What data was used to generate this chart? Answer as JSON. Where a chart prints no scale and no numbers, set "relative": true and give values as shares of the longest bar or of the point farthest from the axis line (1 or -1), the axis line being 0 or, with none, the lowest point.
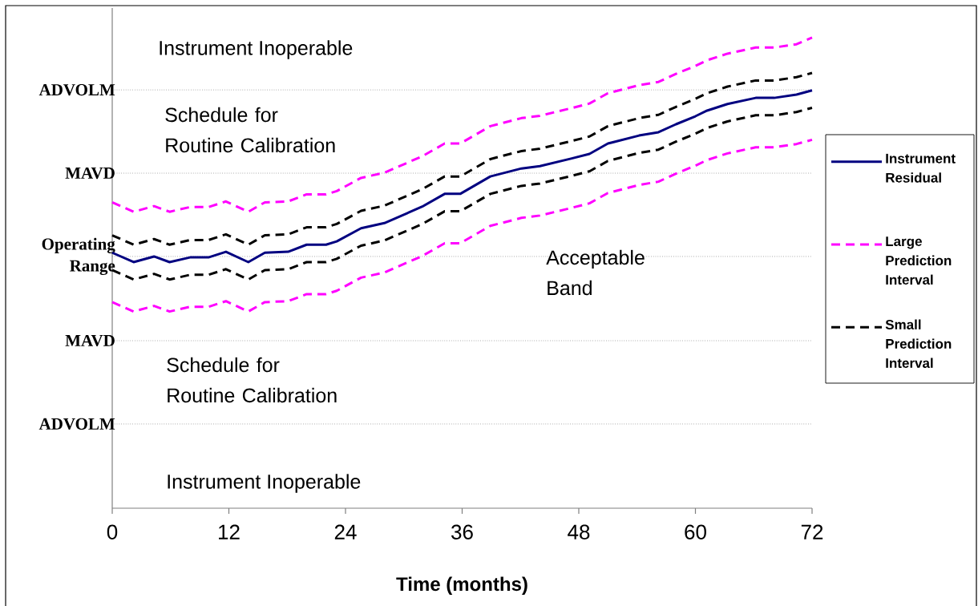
{
  "chart_data": {
    "type": "line",
    "relative": true,
    "xlabel": "Time (months)",
    "x": [
      0,
      2.2,
      4.3,
      5.9,
      8,
      9.9,
      11.7,
      14,
      15.7,
      18.1,
      20,
      22,
      23.1,
      25.6,
      28,
      31.9,
      34.2,
      35.8,
      38.9,
      42.1,
      44,
      47.2,
      49.1,
      51,
      54.2,
      56.2,
      58,
      60,
      61.2,
      63.3,
      66.2,
      68.1,
      70.4,
      72
    ],
    "xlim": [
      0,
      72
    ],
    "xticks": [
      0,
      12,
      24,
      36,
      48,
      60,
      72
    ],
    "legend": "right",
    "series": [
      {
        "name": "Instrument Residual",
        "color": "#000080",
        "line_style": "solid",
        "values": [
          0.543,
          0.523,
          0.535,
          0.523,
          0.533,
          0.533,
          0.545,
          0.523,
          0.543,
          0.545,
          0.56,
          0.56,
          0.567,
          0.595,
          0.606,
          0.641,
          0.668,
          0.668,
          0.705,
          0.722,
          0.727,
          0.743,
          0.753,
          0.775,
          0.792,
          0.799,
          0.816,
          0.833,
          0.845,
          0.859,
          0.872,
          0.872,
          0.879,
          0.888
        ]
      },
      {
        "name": "Large Prediction Interval",
        "color": "#ff00ff",
        "line_style": "dashed",
        "values": [
          0.65,
          0.63,
          0.642,
          0.63,
          0.64,
          0.64,
          0.652,
          0.63,
          0.65,
          0.652,
          0.667,
          0.667,
          0.674,
          0.702,
          0.713,
          0.748,
          0.775,
          0.775,
          0.812,
          0.829,
          0.834,
          0.85,
          0.86,
          0.882,
          0.899,
          0.906,
          0.923,
          0.94,
          0.952,
          0.966,
          0.979,
          0.979,
          0.986,
          1.0
        ]
      },
      {
        "name": "Small Prediction Interval",
        "color": "#000000",
        "line_style": "dashed",
        "values": [
          0.58,
          0.56,
          0.572,
          0.56,
          0.57,
          0.57,
          0.582,
          0.56,
          0.58,
          0.582,
          0.597,
          0.597,
          0.604,
          0.632,
          0.643,
          0.678,
          0.705,
          0.705,
          0.742,
          0.759,
          0.764,
          0.78,
          0.79,
          0.812,
          0.829,
          0.836,
          0.853,
          0.87,
          0.882,
          0.896,
          0.909,
          0.909,
          0.916,
          0.925
        ]
      },
      {
        "color": "#ff00ff",
        "line_style": "dashed",
        "values": [
          0.438,
          0.418,
          0.43,
          0.418,
          0.428,
          0.428,
          0.44,
          0.418,
          0.438,
          0.44,
          0.455,
          0.455,
          0.462,
          0.49,
          0.501,
          0.536,
          0.563,
          0.563,
          0.6,
          0.617,
          0.622,
          0.638,
          0.648,
          0.67,
          0.687,
          0.694,
          0.711,
          0.728,
          0.74,
          0.754,
          0.767,
          0.767,
          0.774,
          0.783
        ]
      },
      {
        "color": "#000000",
        "line_style": "dashed",
        "values": [
          0.506,
          0.486,
          0.498,
          0.486,
          0.496,
          0.496,
          0.508,
          0.486,
          0.506,
          0.508,
          0.523,
          0.523,
          0.53,
          0.558,
          0.569,
          0.604,
          0.631,
          0.631,
          0.668,
          0.685,
          0.69,
          0.706,
          0.716,
          0.738,
          0.755,
          0.762,
          0.779,
          0.796,
          0.808,
          0.822,
          0.835,
          0.835,
          0.842,
          0.851
        ]
      }
    ],
    "ref_lines": [
      {
        "axis": "y",
        "value": 0.889,
        "label": "ADVOLM",
        "color": "#808080",
        "line_style": "dotted"
      },
      {
        "axis": "y",
        "value": 0.712,
        "label": "MAVD",
        "color": "#808080",
        "line_style": "dotted"
      },
      {
        "axis": "y",
        "value": 0.535,
        "label": "Operating Range",
        "color": "#808080",
        "line_style": "dotted"
      },
      {
        "axis": "y",
        "value": 0.356,
        "label": "MAVD",
        "color": "#808080",
        "line_style": "dotted"
      },
      {
        "axis": "y",
        "value": 0.179,
        "label": "ADVOLM",
        "color": "#808080",
        "line_style": "dotted"
      }
    ],
    "annotations": [
      "Instrument Inoperable",
      "Schedule for Routine Calibration",
      "Acceptable Band",
      "Schedule for Routine Calibration",
      "Instrument Inoperable"
    ]
  }
}
